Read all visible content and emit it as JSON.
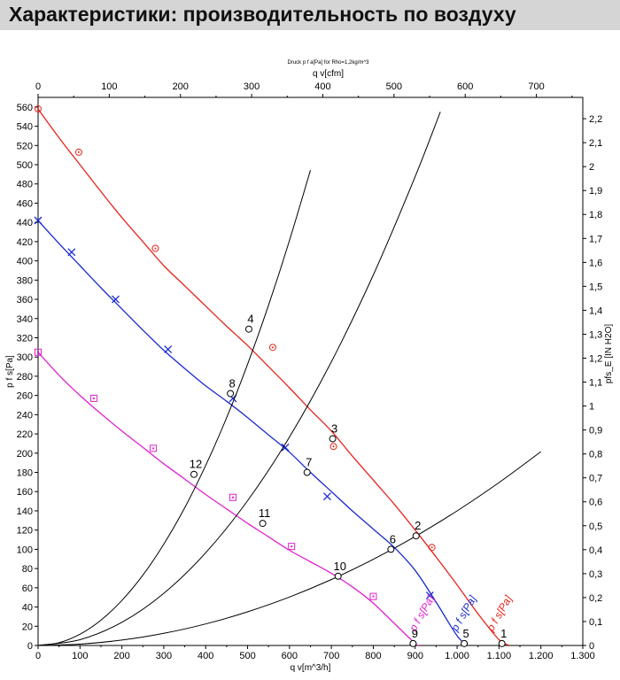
{
  "header": {
    "title": "Характеристики: производительность по воздуху"
  },
  "chart_data": {
    "type": "line",
    "title": "Druck p f a[Pa] for Rho=1,2kg/m^3",
    "xlabel": "q v[m^3/h]",
    "x2label": "q v[cfm]",
    "ylabel": "p f s[Pa]",
    "y2label": "pfs_E [IN H2O]",
    "xlim": [
      0,
      1300
    ],
    "ylim": [
      0,
      570
    ],
    "x2lim": [
      0,
      765.2
    ],
    "y2lim": [
      0,
      2.289
    ],
    "x_ticks": [
      0,
      100,
      200,
      300,
      400,
      500,
      600,
      700,
      800,
      900,
      1000,
      1100,
      1200,
      1300
    ],
    "x_tick_labels": [
      "0",
      "100",
      "200",
      "300",
      "400",
      "500",
      "600",
      "700",
      "800",
      "900",
      "1.000",
      "1.100",
      "1.200",
      "1.300"
    ],
    "y_ticks": [
      0,
      20,
      40,
      60,
      80,
      100,
      120,
      140,
      160,
      180,
      200,
      220,
      240,
      260,
      280,
      300,
      320,
      340,
      360,
      380,
      400,
      420,
      440,
      460,
      480,
      500,
      520,
      540,
      560
    ],
    "x2_ticks": [
      0,
      100,
      200,
      300,
      400,
      500,
      600,
      700
    ],
    "y2_ticks": [
      "0",
      "0,1",
      "0,2",
      "0,3",
      "0,4",
      "0,5",
      "0,6",
      "0,7",
      "0,8",
      "0,9",
      "1",
      "1,1",
      "1,2",
      "1,3",
      "1,4",
      "1,5",
      "1,6",
      "1,7",
      "1,8",
      "1,9",
      "2",
      "2,1",
      "2,2"
    ],
    "grid": false,
    "legend": "none",
    "series": [
      {
        "color": "#e8231a",
        "marker": "circle",
        "label": "p f s[Pa]",
        "x": [
          0,
          50,
          100,
          150,
          200,
          250,
          300,
          350,
          400,
          450,
          500,
          550,
          600,
          650,
          700,
          750,
          800,
          850,
          900,
          950,
          1000,
          1050,
          1100,
          1125
        ],
        "y": [
          558,
          528,
          500,
          472,
          445,
          420,
          395,
          374,
          353,
          332,
          312,
          290,
          268,
          245,
          223,
          197,
          172,
          147,
          120,
          92,
          63,
          33,
          6,
          0
        ],
        "markers_x": [
          0,
          97,
          280,
          560,
          705,
          940
        ],
        "markers_y": [
          558,
          513,
          413,
          310,
          207,
          102
        ]
      },
      {
        "color": "#1a2ad0",
        "marker": "x",
        "label": "p f s[Pa]",
        "x": [
          0,
          50,
          100,
          150,
          200,
          250,
          300,
          350,
          400,
          450,
          500,
          550,
          600,
          650,
          700,
          750,
          800,
          850,
          900,
          950,
          1000,
          1025
        ],
        "y": [
          442,
          418,
          395,
          372,
          350,
          328,
          307,
          288,
          270,
          254,
          237,
          219,
          201,
          180,
          160,
          140,
          121,
          102,
          78,
          45,
          10,
          0
        ],
        "markers_x": [
          0,
          80,
          185,
          310,
          465,
          590,
          690,
          935
        ],
        "markers_y": [
          442,
          409,
          360,
          308,
          257,
          206,
          155,
          52
        ]
      },
      {
        "color": "#e020d0",
        "marker": "square",
        "label": "p f s[Pa]",
        "x": [
          0,
          50,
          100,
          150,
          200,
          250,
          300,
          350,
          400,
          450,
          500,
          550,
          600,
          650,
          700,
          750,
          800,
          850,
          900,
          910
        ],
        "y": [
          305,
          281,
          260,
          241,
          223,
          206,
          189,
          173,
          157,
          142,
          127,
          113,
          99,
          87,
          75,
          61,
          44,
          23,
          2,
          0
        ],
        "markers_x": [
          0,
          133,
          275,
          465,
          605,
          800
        ],
        "markers_y": [
          305,
          257,
          205,
          154,
          103,
          51
        ]
      },
      {
        "color": "#000000",
        "marker": "none",
        "label": "",
        "x": [
          0,
          50,
          100,
          150,
          200,
          250,
          300,
          350,
          400,
          450,
          500,
          550,
          600,
          650
        ],
        "y": [
          0,
          2.9,
          11.7,
          26.3,
          46.8,
          73.1,
          105.3,
          143.3,
          187.2,
          236.9,
          292.5,
          353.9,
          421.2,
          494.3
        ]
      },
      {
        "color": "#000000",
        "marker": "none",
        "label": "",
        "x": [
          0,
          100,
          200,
          300,
          400,
          500,
          600,
          700,
          800,
          900,
          960
        ],
        "y": [
          0,
          6,
          24.1,
          54.2,
          96.4,
          150.6,
          216.8,
          295.1,
          385.4,
          487.8,
          555
        ]
      },
      {
        "color": "#000000",
        "marker": "none",
        "label": "",
        "x": [
          0,
          100,
          200,
          300,
          400,
          500,
          600,
          700,
          800,
          900,
          1000,
          1100,
          1200
        ],
        "y": [
          0,
          1.4,
          5.6,
          12.6,
          22.4,
          35,
          50.4,
          68.6,
          89.6,
          113.4,
          140,
          169.4,
          201.6
        ]
      }
    ],
    "points": [
      {
        "label": "1",
        "x": 1107,
        "y": 2
      },
      {
        "label": "2",
        "x": 902,
        "y": 114
      },
      {
        "label": "3",
        "x": 703,
        "y": 215
      },
      {
        "label": "4",
        "x": 503,
        "y": 329
      },
      {
        "label": "5",
        "x": 1017,
        "y": 2
      },
      {
        "label": "6",
        "x": 842,
        "y": 100
      },
      {
        "label": "7",
        "x": 642,
        "y": 180
      },
      {
        "label": "8",
        "x": 459,
        "y": 262
      },
      {
        "label": "9",
        "x": 895,
        "y": 2
      },
      {
        "label": "10",
        "x": 716,
        "y": 72
      },
      {
        "label": "11",
        "x": 536,
        "y": 127
      },
      {
        "label": "12",
        "x": 372,
        "y": 178
      }
    ],
    "curve_labels": [
      {
        "text": "p f s[Pa]",
        "color": "#e020d0",
        "x": 900,
        "y": 14
      },
      {
        "text": "p f s[Pa]",
        "color": "#1a2ad0",
        "x": 1000,
        "y": 14
      },
      {
        "text": "p f s[Pa]",
        "color": "#e8231a",
        "x": 1085,
        "y": 14
      }
    ]
  }
}
